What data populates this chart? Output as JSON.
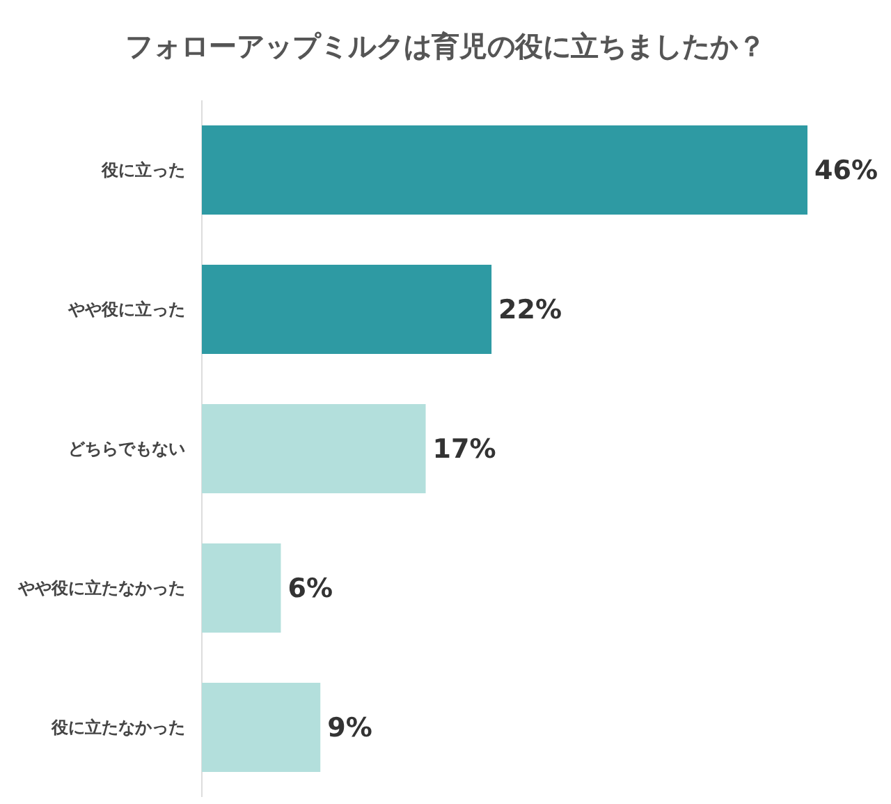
{
  "chart_data": {
    "type": "bar",
    "orientation": "horizontal",
    "title": "フォローアップミルクは育児の役に立ちましたか？",
    "categories": [
      "役に立った",
      "やや役に立った",
      "どちらでもない",
      "やや役に立たなかった",
      "役に立たなかった"
    ],
    "values": [
      46,
      22,
      17,
      6,
      9
    ],
    "value_labels": [
      "46%",
      "22%",
      "17%",
      "6%",
      "9%"
    ],
    "colors": [
      "#2e9aa3",
      "#2e9aa3",
      "#b3dfdc",
      "#b3dfdc",
      "#b3dfdc"
    ]
  }
}
